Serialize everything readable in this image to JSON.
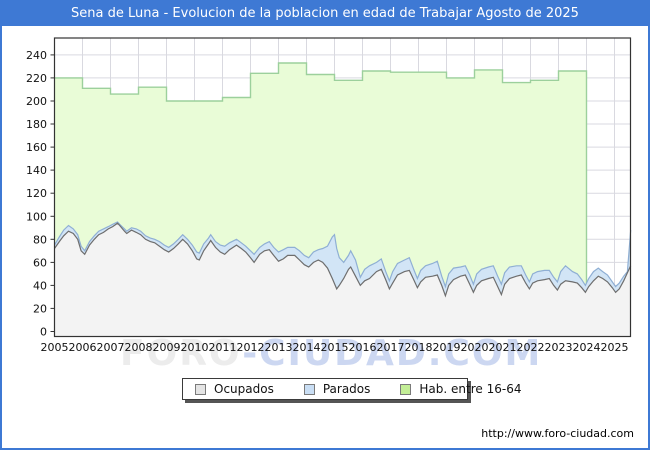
{
  "window": {
    "title": "Sena de Luna - Evolucion de la poblacion en edad de Trabajar Agosto de 2025"
  },
  "footer": {
    "url": "http://www.foro-ciudad.com"
  },
  "watermark": {
    "part1": "FORO",
    "part2": "-CIUDAD.COM"
  },
  "colors": {
    "frame_blue": "#3e79d4",
    "title_text": "#ffffff",
    "plot_border": "#333333",
    "gridline": "#d9d9e0",
    "hab_fill": "#e9fcd7",
    "hab_line": "#9cd09c",
    "parados_fill": "#d2e5f6",
    "parados_line": "#8fafd4",
    "ocupados_fill": "#f3f3f3",
    "ocupados_line": "#6e6e6e",
    "watermark_grey": "#ececec",
    "watermark_blue": "#ccd7f1",
    "legend_swatch_ocupados": "#e4e4e4",
    "legend_swatch_parados": "#c9def4",
    "legend_swatch_hab": "#c3ee96"
  },
  "chart_data": {
    "type": "area",
    "title": "Sena de Luna - Evolucion de la poblacion en edad de Trabajar Agosto de 2025",
    "xlabel": "",
    "ylabel": "",
    "xlim": [
      2005,
      2025.62
    ],
    "ylim": [
      0,
      255
    ],
    "grid": true,
    "legend_position": "bottom",
    "legend": [
      "Ocupados",
      "Parados",
      "Hab. entre 16-64"
    ],
    "x_ticks": [
      2005,
      2006,
      2007,
      2008,
      2009,
      2010,
      2011,
      2012,
      2013,
      2014,
      2015,
      2016,
      2017,
      2018,
      2019,
      2020,
      2021,
      2022,
      2023,
      2024,
      2025
    ],
    "y_ticks": [
      0,
      20,
      40,
      60,
      80,
      100,
      120,
      140,
      160,
      180,
      200,
      220,
      240
    ],
    "series": [
      {
        "name": "Hab. entre 16-64",
        "style": "step-yearly",
        "note": "annual population aged 16-64; series ends early 2024",
        "end_x": 2024.0,
        "points": [
          [
            2005,
            220
          ],
          [
            2006,
            211
          ],
          [
            2007,
            206
          ],
          [
            2008,
            212
          ],
          [
            2009,
            200
          ],
          [
            2010,
            200
          ],
          [
            2011,
            203
          ],
          [
            2012,
            224
          ],
          [
            2013,
            233
          ],
          [
            2014,
            223
          ],
          [
            2015,
            218
          ],
          [
            2016,
            226
          ],
          [
            2017,
            225
          ],
          [
            2018,
            225
          ],
          [
            2019,
            220
          ],
          [
            2020,
            227
          ],
          [
            2021,
            216
          ],
          [
            2022,
            218
          ],
          [
            2023,
            226
          ]
        ]
      },
      {
        "name": "Parados",
        "style": "stacked-top-line",
        "note": "plotted line is Ocupados+Parados (stack top), monthly estimates",
        "points": [
          [
            2005.0,
            75
          ],
          [
            2005.17,
            82
          ],
          [
            2005.33,
            88
          ],
          [
            2005.5,
            92
          ],
          [
            2005.67,
            89
          ],
          [
            2005.83,
            84
          ],
          [
            2005.95,
            74
          ],
          [
            2006.08,
            70
          ],
          [
            2006.25,
            78
          ],
          [
            2006.42,
            83
          ],
          [
            2006.58,
            87
          ],
          [
            2006.75,
            89
          ],
          [
            2006.92,
            91
          ],
          [
            2007.08,
            93
          ],
          [
            2007.25,
            95
          ],
          [
            2007.33,
            93
          ],
          [
            2007.5,
            89
          ],
          [
            2007.58,
            87
          ],
          [
            2007.75,
            90
          ],
          [
            2007.92,
            89
          ],
          [
            2008.08,
            87
          ],
          [
            2008.25,
            83
          ],
          [
            2008.42,
            81
          ],
          [
            2008.58,
            80
          ],
          [
            2008.75,
            78
          ],
          [
            2008.92,
            75
          ],
          [
            2009.08,
            73
          ],
          [
            2009.25,
            76
          ],
          [
            2009.42,
            80
          ],
          [
            2009.58,
            84
          ],
          [
            2009.75,
            80
          ],
          [
            2009.92,
            75
          ],
          [
            2010.08,
            69
          ],
          [
            2010.17,
            68
          ],
          [
            2010.33,
            76
          ],
          [
            2010.5,
            81
          ],
          [
            2010.58,
            84
          ],
          [
            2010.75,
            78
          ],
          [
            2010.92,
            75
          ],
          [
            2011.08,
            74
          ],
          [
            2011.25,
            77
          ],
          [
            2011.5,
            80
          ],
          [
            2011.67,
            77
          ],
          [
            2011.83,
            74
          ],
          [
            2012.0,
            70
          ],
          [
            2012.13,
            67
          ],
          [
            2012.33,
            73
          ],
          [
            2012.5,
            76
          ],
          [
            2012.67,
            78
          ],
          [
            2012.83,
            73
          ],
          [
            2013.0,
            69
          ],
          [
            2013.17,
            71
          ],
          [
            2013.33,
            73
          ],
          [
            2013.58,
            73
          ],
          [
            2013.75,
            70
          ],
          [
            2013.92,
            66
          ],
          [
            2014.08,
            64
          ],
          [
            2014.25,
            69
          ],
          [
            2014.42,
            71
          ],
          [
            2014.58,
            72
          ],
          [
            2014.75,
            74
          ],
          [
            2014.92,
            82
          ],
          [
            2015.0,
            84
          ],
          [
            2015.08,
            72
          ],
          [
            2015.17,
            64
          ],
          [
            2015.33,
            60
          ],
          [
            2015.5,
            66
          ],
          [
            2015.58,
            70
          ],
          [
            2015.75,
            62
          ],
          [
            2015.92,
            47
          ],
          [
            2016.08,
            54
          ],
          [
            2016.25,
            57
          ],
          [
            2016.5,
            60
          ],
          [
            2016.67,
            63
          ],
          [
            2016.83,
            52
          ],
          [
            2016.96,
            44
          ],
          [
            2017.08,
            52
          ],
          [
            2017.25,
            59
          ],
          [
            2017.5,
            62
          ],
          [
            2017.67,
            64
          ],
          [
            2017.83,
            54
          ],
          [
            2017.96,
            46
          ],
          [
            2018.08,
            53
          ],
          [
            2018.25,
            57
          ],
          [
            2018.5,
            59
          ],
          [
            2018.67,
            61
          ],
          [
            2018.83,
            48
          ],
          [
            2018.96,
            39
          ],
          [
            2019.08,
            50
          ],
          [
            2019.25,
            55
          ],
          [
            2019.5,
            56
          ],
          [
            2019.67,
            57
          ],
          [
            2019.83,
            49
          ],
          [
            2019.96,
            41
          ],
          [
            2020.08,
            50
          ],
          [
            2020.25,
            54
          ],
          [
            2020.5,
            56
          ],
          [
            2020.67,
            57
          ],
          [
            2020.83,
            48
          ],
          [
            2020.96,
            41
          ],
          [
            2021.08,
            51
          ],
          [
            2021.25,
            56
          ],
          [
            2021.5,
            57
          ],
          [
            2021.67,
            57
          ],
          [
            2021.83,
            49
          ],
          [
            2021.96,
            43
          ],
          [
            2022.08,
            50
          ],
          [
            2022.25,
            52
          ],
          [
            2022.5,
            53
          ],
          [
            2022.67,
            53
          ],
          [
            2022.83,
            47
          ],
          [
            2022.96,
            43
          ],
          [
            2023.08,
            52
          ],
          [
            2023.25,
            57
          ],
          [
            2023.5,
            52
          ],
          [
            2023.67,
            50
          ],
          [
            2023.83,
            45
          ],
          [
            2023.96,
            40
          ],
          [
            2024.08,
            46
          ],
          [
            2024.25,
            52
          ],
          [
            2024.42,
            55
          ],
          [
            2024.58,
            52
          ],
          [
            2024.75,
            49
          ],
          [
            2024.92,
            43
          ],
          [
            2025.04,
            39
          ],
          [
            2025.17,
            42
          ],
          [
            2025.33,
            48
          ],
          [
            2025.46,
            52
          ],
          [
            2025.58,
            88
          ]
        ]
      },
      {
        "name": "Ocupados",
        "style": "line",
        "note": "monthly estimates",
        "points": [
          [
            2005.0,
            72
          ],
          [
            2005.17,
            78
          ],
          [
            2005.33,
            83
          ],
          [
            2005.5,
            87
          ],
          [
            2005.67,
            85
          ],
          [
            2005.83,
            80
          ],
          [
            2005.95,
            70
          ],
          [
            2006.08,
            67
          ],
          [
            2006.25,
            75
          ],
          [
            2006.42,
            80
          ],
          [
            2006.58,
            84
          ],
          [
            2006.75,
            86
          ],
          [
            2006.92,
            89
          ],
          [
            2007.08,
            91
          ],
          [
            2007.25,
            94
          ],
          [
            2007.33,
            92
          ],
          [
            2007.5,
            87
          ],
          [
            2007.58,
            85
          ],
          [
            2007.75,
            88
          ],
          [
            2007.92,
            86
          ],
          [
            2008.08,
            84
          ],
          [
            2008.25,
            80
          ],
          [
            2008.42,
            78
          ],
          [
            2008.58,
            77
          ],
          [
            2008.75,
            74
          ],
          [
            2008.92,
            71
          ],
          [
            2009.08,
            69
          ],
          [
            2009.25,
            72
          ],
          [
            2009.42,
            76
          ],
          [
            2009.58,
            80
          ],
          [
            2009.75,
            76
          ],
          [
            2009.92,
            70
          ],
          [
            2010.08,
            63
          ],
          [
            2010.17,
            62
          ],
          [
            2010.33,
            70
          ],
          [
            2010.5,
            76
          ],
          [
            2010.58,
            79
          ],
          [
            2010.75,
            73
          ],
          [
            2010.92,
            69
          ],
          [
            2011.08,
            67
          ],
          [
            2011.25,
            71
          ],
          [
            2011.5,
            75
          ],
          [
            2011.67,
            72
          ],
          [
            2011.83,
            69
          ],
          [
            2012.0,
            64
          ],
          [
            2012.13,
            60
          ],
          [
            2012.33,
            67
          ],
          [
            2012.5,
            70
          ],
          [
            2012.67,
            71
          ],
          [
            2012.83,
            66
          ],
          [
            2013.0,
            61
          ],
          [
            2013.17,
            63
          ],
          [
            2013.33,
            66
          ],
          [
            2013.58,
            66
          ],
          [
            2013.75,
            62
          ],
          [
            2013.92,
            58
          ],
          [
            2014.08,
            56
          ],
          [
            2014.25,
            60
          ],
          [
            2014.42,
            62
          ],
          [
            2014.58,
            60
          ],
          [
            2014.75,
            55
          ],
          [
            2014.92,
            46
          ],
          [
            2015.08,
            37
          ],
          [
            2015.17,
            40
          ],
          [
            2015.33,
            46
          ],
          [
            2015.5,
            54
          ],
          [
            2015.58,
            56
          ],
          [
            2015.75,
            48
          ],
          [
            2015.92,
            40
          ],
          [
            2016.08,
            44
          ],
          [
            2016.25,
            46
          ],
          [
            2016.5,
            52
          ],
          [
            2016.67,
            54
          ],
          [
            2016.83,
            45
          ],
          [
            2016.96,
            37
          ],
          [
            2017.08,
            42
          ],
          [
            2017.25,
            49
          ],
          [
            2017.5,
            52
          ],
          [
            2017.67,
            53
          ],
          [
            2017.83,
            45
          ],
          [
            2017.96,
            38
          ],
          [
            2018.08,
            43
          ],
          [
            2018.25,
            47
          ],
          [
            2018.5,
            48
          ],
          [
            2018.67,
            49
          ],
          [
            2018.83,
            40
          ],
          [
            2018.96,
            31
          ],
          [
            2019.08,
            40
          ],
          [
            2019.25,
            45
          ],
          [
            2019.5,
            48
          ],
          [
            2019.67,
            49
          ],
          [
            2019.83,
            41
          ],
          [
            2019.96,
            34
          ],
          [
            2020.08,
            40
          ],
          [
            2020.25,
            44
          ],
          [
            2020.5,
            46
          ],
          [
            2020.67,
            47
          ],
          [
            2020.83,
            39
          ],
          [
            2020.96,
            32
          ],
          [
            2021.08,
            41
          ],
          [
            2021.25,
            46
          ],
          [
            2021.5,
            48
          ],
          [
            2021.67,
            49
          ],
          [
            2021.83,
            42
          ],
          [
            2021.96,
            37
          ],
          [
            2022.08,
            42
          ],
          [
            2022.25,
            44
          ],
          [
            2022.5,
            45
          ],
          [
            2022.67,
            46
          ],
          [
            2022.83,
            40
          ],
          [
            2022.96,
            36
          ],
          [
            2023.08,
            41
          ],
          [
            2023.25,
            44
          ],
          [
            2023.5,
            43
          ],
          [
            2023.67,
            42
          ],
          [
            2023.83,
            38
          ],
          [
            2023.96,
            34
          ],
          [
            2024.08,
            39
          ],
          [
            2024.25,
            44
          ],
          [
            2024.42,
            48
          ],
          [
            2024.58,
            46
          ],
          [
            2024.75,
            43
          ],
          [
            2024.92,
            38
          ],
          [
            2025.04,
            34
          ],
          [
            2025.17,
            37
          ],
          [
            2025.33,
            44
          ],
          [
            2025.46,
            51
          ],
          [
            2025.58,
            57
          ]
        ]
      }
    ]
  }
}
